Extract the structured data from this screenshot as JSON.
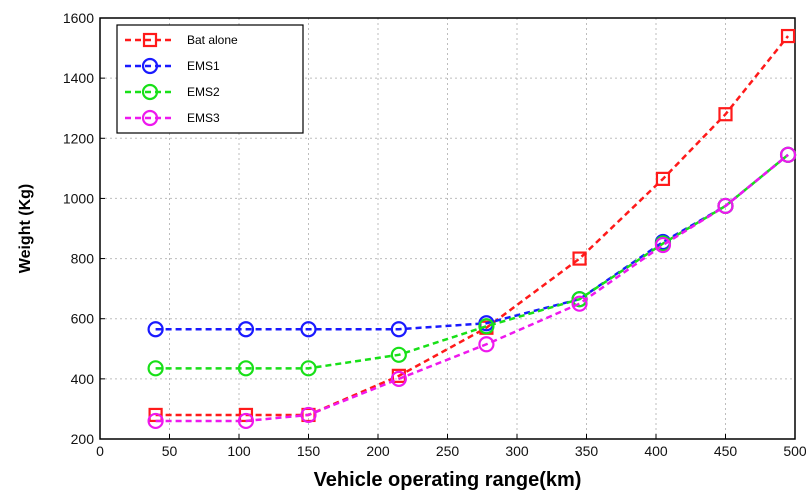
{
  "chart_data": {
    "type": "line",
    "title": "",
    "xlabel": "Vehicle operating range(km)",
    "ylabel": "Weight (Kg)",
    "xlim": [
      0,
      500
    ],
    "ylim": [
      200,
      1600
    ],
    "xticks": [
      0,
      50,
      100,
      150,
      200,
      250,
      300,
      350,
      400,
      450,
      500
    ],
    "yticks": [
      200,
      400,
      600,
      800,
      1000,
      1200,
      1400,
      1600
    ],
    "grid": true,
    "legend_position": "top-left",
    "series": [
      {
        "name": "Bat alone",
        "color": "#ff1a1a",
        "marker": "square",
        "x": [
          40,
          105,
          150,
          215,
          278,
          345,
          405,
          450,
          495
        ],
        "y": [
          280,
          280,
          280,
          410,
          570,
          800,
          1065,
          1280,
          1540
        ]
      },
      {
        "name": "EMS1",
        "color": "#1a1aff",
        "marker": "circle",
        "x": [
          40,
          105,
          150,
          215,
          278,
          345,
          405,
          450,
          495
        ],
        "y": [
          565,
          565,
          565,
          565,
          585,
          665,
          855,
          975,
          1145
        ]
      },
      {
        "name": "EMS2",
        "color": "#18e018",
        "marker": "circle",
        "x": [
          40,
          105,
          150,
          215,
          278,
          345,
          405,
          450,
          495
        ],
        "y": [
          435,
          435,
          435,
          480,
          575,
          665,
          850,
          975,
          1145
        ]
      },
      {
        "name": "EMS3",
        "color": "#ee18ee",
        "marker": "circle",
        "x": [
          40,
          105,
          150,
          215,
          278,
          345,
          405,
          450,
          495
        ],
        "y": [
          260,
          260,
          280,
          400,
          515,
          650,
          845,
          975,
          1145
        ]
      }
    ]
  }
}
